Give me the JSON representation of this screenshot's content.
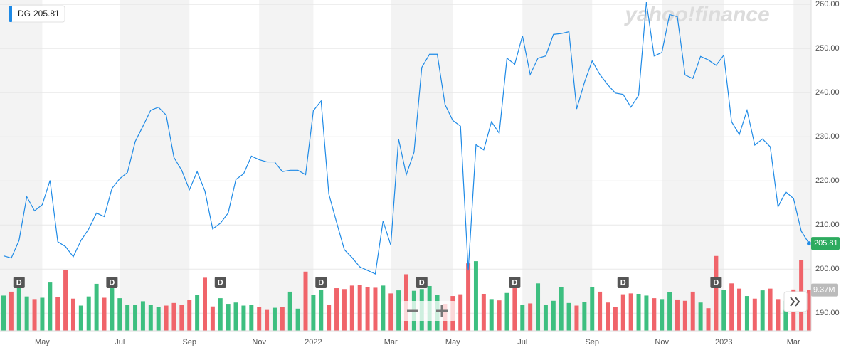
{
  "chart_data": {
    "type": "line",
    "watermark": "yahoo!finance",
    "categories": [
      null,
      null,
      null,
      null,
      null,
      "May",
      null,
      null,
      null,
      null,
      null,
      null,
      null,
      null,
      null,
      "Jul",
      null,
      null,
      null,
      null,
      null,
      null,
      null,
      null,
      "Sep",
      null,
      null,
      null,
      null,
      null,
      null,
      null,
      null,
      "Nov",
      null,
      null,
      null,
      null,
      null,
      null,
      "2022",
      null,
      null,
      null,
      null,
      null,
      null,
      null,
      null,
      null,
      "Mar",
      null,
      null,
      null,
      null,
      null,
      null,
      null,
      "May",
      null,
      null,
      null,
      null,
      null,
      null,
      null,
      null,
      "Jul",
      null,
      null,
      null,
      null,
      null,
      null,
      null,
      null,
      "Sep",
      null,
      null,
      null,
      null,
      null,
      null,
      null,
      null,
      "Nov",
      null,
      null,
      null,
      null,
      null,
      null,
      null,
      "2023",
      null,
      null,
      null,
      null,
      null,
      null,
      null,
      null,
      "Mar",
      null,
      null
    ],
    "series": [
      {
        "name": "DG",
        "color": "#1e8ae6",
        "values": [
          203,
          202.5,
          206.5,
          216.4,
          213.2,
          214.6,
          220.1,
          206.2,
          205.1,
          202.8,
          206.5,
          209.1,
          212.7,
          211.9,
          218.3,
          220.5,
          221.9,
          228.9,
          232.4,
          236,
          236.7,
          234.9,
          225.3,
          222.4,
          218,
          222.1,
          217.7,
          209.1,
          210.4,
          212.7,
          220.3,
          221.6,
          225.6,
          224.8,
          224.3,
          224.3,
          222.1,
          222.4,
          222.4,
          221.4,
          235.9,
          238.1,
          217,
          210.6,
          204.4,
          202.6,
          200.5,
          199.7,
          198.9,
          210.9,
          205.4,
          229.5,
          221.4,
          226.5,
          245.7,
          248.7,
          248.7,
          237.3,
          233.7,
          232.4,
          199.7,
          228.2,
          227,
          233.4,
          230.8,
          247.8,
          246.4,
          252.9,
          244.1,
          247.8,
          248.3,
          253.2,
          253.4,
          253.8,
          236.3,
          242.3,
          247.2,
          244.1,
          241.8,
          239.9,
          239.6,
          236.7,
          239.4,
          260.5,
          248.3,
          249.1,
          257.7,
          257.2,
          244,
          243.2,
          248.2,
          247.4,
          246.2,
          248.5,
          233.4,
          230.5,
          236,
          228.1,
          229.5,
          227.7,
          214.1,
          217.5,
          216,
          208.6,
          205.81
        ]
      },
      {
        "type": "bar",
        "axis": "y2",
        "up_color": "#3dbf80",
        "down_color": "#f0646a",
        "values": [
          8.1,
          9.0,
          10.6,
          7.9,
          7.3,
          7.6,
          11.1,
          7.7,
          14.0,
          7.4,
          5.8,
          7.9,
          10.8,
          7.6,
          9.8,
          7.5,
          6.0,
          6.0,
          6.8,
          6.0,
          5.4,
          5.8,
          6.4,
          5.9,
          7.1,
          8.3,
          12.2,
          5.6,
          7.5,
          6.2,
          6.5,
          5.8,
          5.9,
          5.5,
          4.8,
          5.3,
          5.5,
          9.0,
          5.1,
          13.6,
          8.3,
          9.4,
          6.0,
          9.8,
          9.6,
          10.4,
          10.6,
          10.0,
          9.9,
          10.4,
          8.6,
          9.3,
          13.0,
          9.2,
          9.6,
          10.3,
          8.3,
          6.2,
          8.0,
          8.4,
          15.5,
          16.0,
          8.5,
          7.3,
          7.0,
          8.7,
          9.8,
          6.0,
          6.3,
          10.9,
          6.0,
          6.9,
          10.1,
          6.4,
          5.8,
          6.7,
          10.0,
          9.0,
          6.5,
          5.5,
          8.4,
          8.6,
          8.5,
          8.1,
          7.5,
          7.3,
          8.9,
          7.2,
          6.9,
          9.0,
          6.5,
          5.2,
          17.2,
          9.4,
          10.9,
          9.7,
          8.0,
          7.4,
          9.3,
          9.7,
          7.3,
          6.9,
          9.5,
          16.2,
          9.37
        ],
        "value_label_last": "9.37M"
      }
    ],
    "ylim": [
      186,
      261
    ],
    "yticks": [
      {
        "value": 190,
        "label": "190.00"
      },
      {
        "value": 200,
        "label": "200.00"
      },
      {
        "value": 210,
        "label": "210.00"
      },
      {
        "value": 220,
        "label": "220.00"
      },
      {
        "value": 230,
        "label": "230.00"
      },
      {
        "value": 240,
        "label": "240.00"
      },
      {
        "value": 250,
        "label": "250.00"
      },
      {
        "value": 260,
        "label": "260.00"
      }
    ],
    "y2lim": [
      0,
      76
    ],
    "grid": true,
    "last_badge_color": "#2dab5f",
    "dividends": {
      "label": "D",
      "weeks": [
        2,
        14,
        28,
        41,
        54,
        66,
        80,
        92
      ]
    }
  }
}
